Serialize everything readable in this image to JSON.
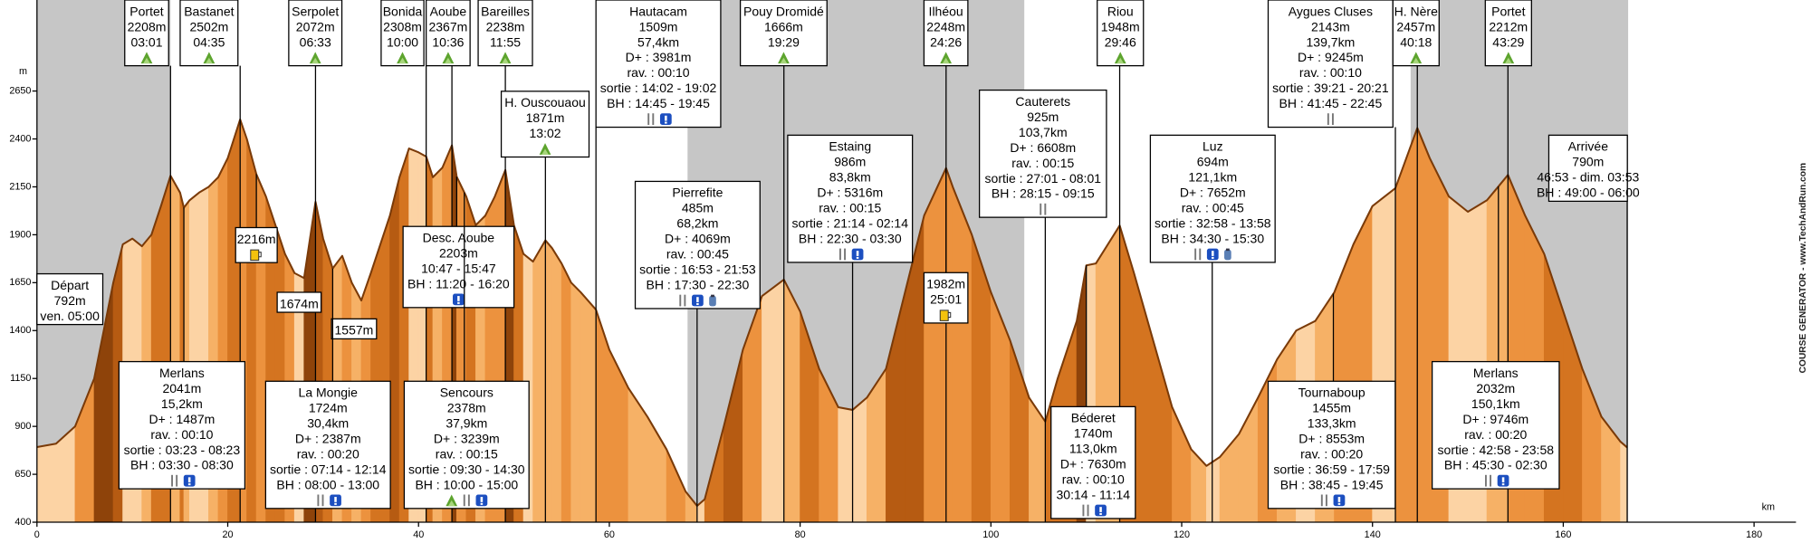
{
  "chart_data": {
    "type": "area",
    "x_label": "km",
    "y_label": "m",
    "credit": "COURSE GENERATOR - www.TechAndRun.com",
    "xlim": [
      0,
      185
    ],
    "ylim": [
      400,
      3125
    ],
    "xticks": [
      0,
      20,
      40,
      60,
      80,
      100,
      120,
      140,
      160,
      180
    ],
    "yticks": [
      400,
      650,
      900,
      1150,
      1400,
      1650,
      1900,
      2150,
      2400,
      2650
    ],
    "night_ranges": [
      [
        0,
        14
      ],
      [
        68.2,
        103.5
      ],
      [
        144,
        166.8
      ]
    ],
    "line_color": "#7a3a08",
    "x": [
      0,
      2,
      4,
      6,
      8,
      9,
      10,
      11,
      12,
      13,
      14,
      15,
      15.4,
      16,
      17,
      18,
      19,
      20,
      21.3,
      22,
      23,
      24,
      25,
      26,
      27,
      28,
      29.2,
      30,
      31,
      32,
      33,
      34,
      35,
      36,
      37,
      38,
      39,
      40,
      40.8,
      41.5,
      42.5,
      43.5,
      44,
      45,
      46,
      47,
      48,
      49.1,
      50,
      51,
      52,
      53.3,
      54,
      55,
      56,
      57,
      58.6,
      60,
      62,
      64,
      66,
      68,
      69.2,
      70,
      72,
      74,
      76,
      78.3,
      80,
      82,
      84,
      85.5,
      87,
      89,
      91,
      93,
      95.3,
      96,
      98,
      100,
      102,
      104,
      105.7,
      107,
      109,
      110,
      111,
      113.5,
      115,
      117,
      119,
      121,
      122.6,
      124,
      126,
      128,
      130,
      132,
      134,
      136,
      138,
      140,
      142.4,
      144.7,
      146,
      148,
      150,
      152,
      154.2,
      156,
      158,
      160,
      162,
      164,
      166,
      166.7
    ],
    "values": [
      792,
      810,
      900,
      1150,
      1650,
      1850,
      1880,
      1840,
      1900,
      2050,
      2208,
      2120,
      2041,
      2080,
      2120,
      2150,
      2200,
      2300,
      2502,
      2400,
      2216,
      2100,
      1950,
      1800,
      1700,
      1674,
      2072,
      1880,
      1724,
      1790,
      1650,
      1557,
      1700,
      1850,
      2000,
      2200,
      2350,
      2330,
      2308,
      2200,
      2250,
      2367,
      2203,
      2100,
      1950,
      2000,
      2100,
      2238,
      1950,
      1800,
      1760,
      1871,
      1830,
      1750,
      1650,
      1600,
      1509,
      1300,
      1100,
      950,
      780,
      560,
      485,
      520,
      900,
      1300,
      1580,
      1666,
      1500,
      1200,
      1000,
      986,
      1050,
      1200,
      1600,
      2000,
      2248,
      2150,
      1900,
      1600,
      1350,
      1050,
      925,
      1150,
      1450,
      1740,
      1750,
      1948,
      1700,
      1350,
      1000,
      780,
      694,
      740,
      860,
      1050,
      1250,
      1400,
      1450,
      1600,
      1850,
      2050,
      2143,
      2457,
      2300,
      2100,
      2020,
      2080,
      2212,
      2000,
      1800,
      1500,
      1200,
      950,
      820,
      790
    ],
    "waypoints": [
      {
        "lines": [
          "Portet",
          "2208m",
          "03:01"
        ],
        "x": 14
      },
      {
        "lines": [
          "Bastanet",
          "2502m",
          "04:35"
        ],
        "x": 21.3
      },
      {
        "lines": [
          "Serpolet",
          "2072m",
          "06:33"
        ],
        "x": 29.2
      },
      {
        "lines": [
          "Bonida",
          "2308m",
          "10:00"
        ],
        "x": 40.8
      },
      {
        "lines": [
          "Aoube",
          "2367m",
          "10:36"
        ],
        "x": 43.5
      },
      {
        "lines": [
          "Bareilles",
          "2238m",
          "11:55"
        ],
        "x": 49.1
      },
      {
        "lines": [
          "Hautacam",
          "1509m",
          "57,4km",
          "D+ : 3981m",
          "rav. : 00:10",
          "sortie : 14:02 - 19:02",
          "BH : 14:45 - 19:45"
        ],
        "x": 58.6
      },
      {
        "lines": [
          "Pouy Dromidé",
          "1666m",
          "19:29"
        ],
        "x": 78.3
      },
      {
        "lines": [
          "Ilhéou",
          "2248m",
          "24:26"
        ],
        "x": 95.3
      },
      {
        "lines": [
          "Riou",
          "1948m",
          "29:46"
        ],
        "x": 113.5
      },
      {
        "lines": [
          "Aygues Cluses",
          "2143m",
          "139,7km",
          "D+ : 9245m",
          "rav. : 00:10",
          "sortie : 39:21 - 20:21",
          "BH : 41:45 - 22:45"
        ],
        "x": 142.4
      },
      {
        "lines": [
          "H. Nère",
          "2457m",
          "40:18"
        ],
        "x": 144.7
      },
      {
        "lines": [
          "Portet",
          "2212m",
          "43:29"
        ],
        "x": 154.2
      },
      {
        "lines": [
          "Départ",
          "792m",
          "ven. 05:00"
        ]
      },
      {
        "lines": [
          "Merlans",
          "2041m",
          "15,2km",
          "D+ : 1487m",
          "rav. : 00:10",
          "sortie : 03:23 - 08:23",
          "BH : 03:30 - 08:30"
        ],
        "x": 15.4
      },
      {
        "lines": [
          "2216m"
        ],
        "x": 23
      },
      {
        "lines": [
          "1674m"
        ]
      },
      {
        "lines": [
          "1557m"
        ]
      },
      {
        "lines": [
          "La Mongie",
          "1724m",
          "30,4km",
          "D+ : 2387m",
          "rav. : 00:20",
          "sortie : 07:14 - 12:14",
          "BH : 08:00 - 13:00"
        ],
        "x": 31
      },
      {
        "lines": [
          "Desc. Aoube",
          "2203m",
          "10:47 - 15:47",
          "BH : 11:20 - 16:20"
        ],
        "x": 44
      },
      {
        "lines": [
          "Sencours",
          "2378m",
          "37,9km",
          "D+ : 3239m",
          "rav. : 00:15",
          "sortie : 09:30 - 14:30",
          "BH : 10:00 - 15:00"
        ],
        "x": 44.8
      },
      {
        "lines": [
          "H. Ouscouaou",
          "1871m",
          "13:02"
        ],
        "x": 53.3
      },
      {
        "lines": [
          "Pierrefite",
          "485m",
          "68,2km",
          "D+ : 4069m",
          "rav. : 00:45",
          "sortie : 16:53 - 21:53",
          "BH : 17:30 - 22:30"
        ],
        "x": 69.2
      },
      {
        "lines": [
          "Estaing",
          "986m",
          "83,8km",
          "D+ : 5316m",
          "rav. : 00:15",
          "sortie : 21:14 - 02:14",
          "BH : 22:30 - 03:30"
        ],
        "x": 85.5
      },
      {
        "lines": [
          "1982m",
          "25:01"
        ],
        "x": 95.3
      },
      {
        "lines": [
          "Cauterets",
          "925m",
          "103,7km",
          "D+ : 6608m",
          "rav. : 00:15",
          "sortie : 27:01 - 08:01",
          "BH : 28:15 - 09:15"
        ],
        "x": 105.7
      },
      {
        "lines": [
          "Béderet",
          "1740m",
          "113,0km",
          "D+ : 7630m",
          "rav. : 00:10",
          "30:14 - 11:14"
        ],
        "x": 110
      },
      {
        "lines": [
          "Luz",
          "694m",
          "121,1km",
          "D+ : 7652m",
          "rav. : 00:45",
          "sortie : 32:58 - 13:58",
          "BH : 34:30 - 15:30"
        ],
        "x": 123.2
      },
      {
        "lines": [
          "Tournaboup",
          "1455m",
          "133,3km",
          "D+ : 8553m",
          "rav. : 00:20",
          "sortie : 36:59 - 17:59",
          "BH : 38:45 - 19:45"
        ],
        "x": 135.9
      },
      {
        "lines": [
          "Merlans",
          "2032m",
          "150,1km",
          "D+ : 9746m",
          "rav. : 00:20",
          "sortie : 42:58 - 23:58",
          "BH : 45:30 - 02:30"
        ],
        "x": 153.2
      },
      {
        "lines": [
          "Arrivée",
          "790m",
          "46:53 - dim. 03:53",
          "BH : 49:00 - 06:00"
        ],
        "x": 166.7
      }
    ]
  }
}
